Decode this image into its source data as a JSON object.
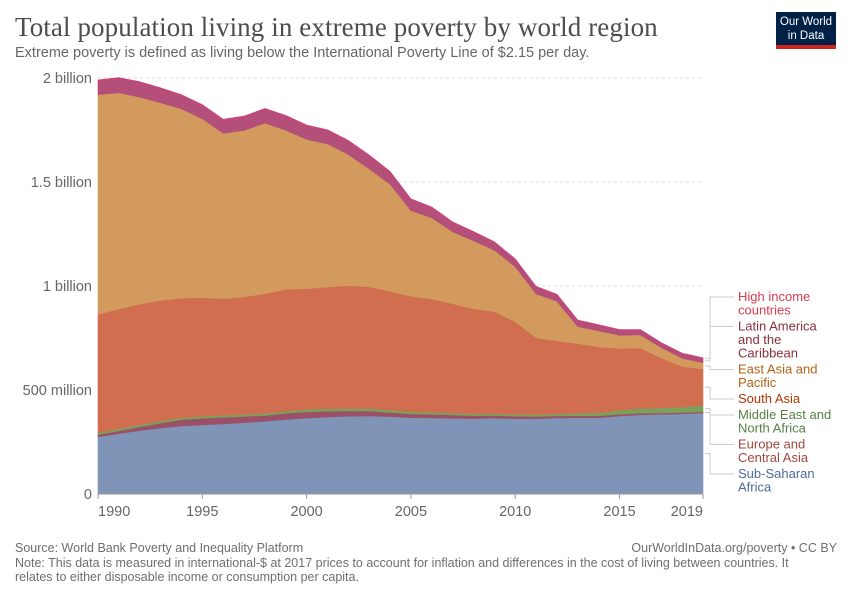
{
  "header": {
    "title": "Total population living in extreme poverty by world region",
    "subtitle": "Extreme poverty is defined as living below the International Poverty Line of $2.15 per day.",
    "logo_line1": "Our World",
    "logo_line2": "in Data"
  },
  "footer": {
    "source": "Source: World Bank Poverty and Inequality Platform",
    "credit": "OurWorldInData.org/poverty • CC BY",
    "note": "Note: This data is measured in international-$ at 2017 prices to account for inflation and differences in the cost of living between countries. It relates to either disposable income or consumption per capita."
  },
  "chart_data": {
    "type": "area",
    "stacked": true,
    "title": "Total population living in extreme poverty by world region",
    "subtitle": "Extreme poverty is defined as living below the International Poverty Line of $2.15 per day.",
    "xlabel": "",
    "ylabel": "",
    "unit": "million people",
    "ylim": [
      0,
      2000
    ],
    "xlim": [
      1990,
      2019
    ],
    "grid": "horizontal dashed",
    "legend_position": "right",
    "y_ticks": [
      {
        "value": 0,
        "label": "0"
      },
      {
        "value": 500,
        "label": "500 million"
      },
      {
        "value": 1000,
        "label": "1 billion"
      },
      {
        "value": 1500,
        "label": "1.5 billion"
      },
      {
        "value": 2000,
        "label": "2 billion"
      }
    ],
    "x_ticks": [
      {
        "value": 1990,
        "label": "1990"
      },
      {
        "value": 1995,
        "label": "1995"
      },
      {
        "value": 2000,
        "label": "2000"
      },
      {
        "value": 2005,
        "label": "2005"
      },
      {
        "value": 2010,
        "label": "2010"
      },
      {
        "value": 2015,
        "label": "2015"
      },
      {
        "value": 2019,
        "label": "2019"
      }
    ],
    "x": [
      1990,
      1991,
      1992,
      1993,
      1994,
      1995,
      1996,
      1997,
      1998,
      1999,
      2000,
      2001,
      2002,
      2003,
      2004,
      2005,
      2006,
      2007,
      2008,
      2009,
      2010,
      2011,
      2012,
      2013,
      2014,
      2015,
      2016,
      2017,
      2018,
      2019
    ],
    "series": [
      {
        "name": "Sub-Saharan Africa",
        "label_lines": [
          "Sub-Saharan",
          "Africa"
        ],
        "fill": "#8094b8",
        "text_color": "#4c6a9c",
        "values": [
          275,
          290,
          305,
          317,
          327,
          332,
          337,
          343,
          350,
          358,
          365,
          370,
          374,
          375,
          372,
          367,
          366,
          364,
          362,
          365,
          362,
          362,
          366,
          367,
          367,
          375,
          381,
          383,
          385,
          389
        ]
      },
      {
        "name": "Europe and Central Asia",
        "label_lines": [
          "Europe and",
          "Central Asia"
        ],
        "fill": "#9c5068",
        "text_color": "#a2463f",
        "values": [
          10,
          14,
          18,
          24,
          30,
          32,
          32,
          30,
          28,
          30,
          30,
          28,
          26,
          24,
          20,
          18,
          17,
          16,
          15,
          13,
          12,
          11,
          10,
          9,
          9,
          8,
          8,
          7,
          7,
          6
        ]
      },
      {
        "name": "Middle East and North Africa",
        "label_lines": [
          "Middle East and",
          "North Africa"
        ],
        "fill": "#7aa05a",
        "text_color": "#578145",
        "values": [
          10,
          10,
          10,
          10,
          10,
          10,
          10,
          10,
          10,
          11,
          12,
          12,
          12,
          12,
          12,
          11,
          10,
          10,
          9,
          9,
          9,
          9,
          10,
          12,
          15,
          20,
          22,
          24,
          26,
          31
        ]
      },
      {
        "name": "South Asia",
        "label_lines": [
          "South Asia"
        ],
        "fill": "#d26e50",
        "text_color": "#b13507",
        "values": [
          570,
          575,
          580,
          580,
          575,
          570,
          560,
          565,
          575,
          585,
          580,
          585,
          590,
          585,
          570,
          555,
          545,
          525,
          505,
          490,
          445,
          370,
          350,
          335,
          316,
          297,
          291,
          240,
          195,
          175
        ]
      },
      {
        "name": "East Asia and Pacific",
        "label_lines": [
          "East Asia and",
          "Pacific"
        ],
        "fill": "#d29a5c",
        "text_color": "#b16214",
        "values": [
          1055,
          1040,
          995,
          950,
          910,
          860,
          795,
          800,
          820,
          765,
          718,
          688,
          630,
          568,
          515,
          412,
          390,
          345,
          327,
          295,
          265,
          210,
          190,
          82,
          77,
          63,
          63,
          50,
          40,
          30
        ]
      },
      {
        "name": "Latin America and the Caribbean",
        "label_lines": [
          "Latin America",
          "and the",
          "Caribbean"
        ],
        "fill": "#b34f78",
        "text_color": "#883039",
        "values": [
          65,
          67,
          68,
          66,
          62,
          62,
          62,
          63,
          65,
          65,
          63,
          62,
          62,
          60,
          56,
          50,
          46,
          42,
          38,
          35,
          32,
          30,
          28,
          25,
          24,
          22,
          20,
          18,
          18,
          18
        ]
      },
      {
        "name": "High income countries",
        "label_lines": [
          "High income",
          "countries"
        ],
        "fill": "#c8457a",
        "text_color": "#d73c50",
        "values": [
          6,
          6,
          6,
          6,
          6,
          6,
          6,
          6,
          6,
          6,
          6,
          6,
          6,
          6,
          6,
          6,
          6,
          6,
          6,
          6,
          6,
          6,
          6,
          6,
          6,
          6,
          6,
          6,
          6,
          6
        ]
      }
    ]
  }
}
